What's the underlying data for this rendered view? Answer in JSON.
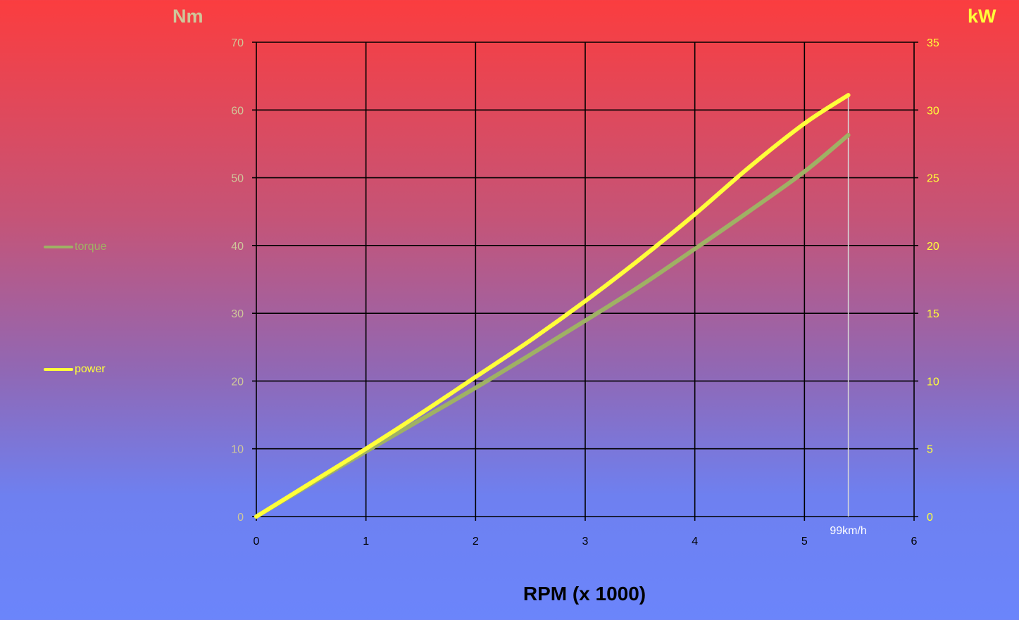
{
  "chart_data": {
    "type": "line",
    "xlabel": "RPM (x 1000)",
    "ylabel_left": "Nm",
    "ylabel_right": "kW",
    "xlim": [
      0,
      6
    ],
    "ylim_left": [
      0,
      70
    ],
    "ylim_right": [
      0,
      35
    ],
    "xticks": [
      "0",
      "1",
      "2",
      "3",
      "4",
      "5",
      "6"
    ],
    "yticks_left": [
      "0",
      "10",
      "20",
      "30",
      "40",
      "50",
      "60",
      "70"
    ],
    "yticks_right": [
      "0",
      "5",
      "10",
      "15",
      "20",
      "25",
      "30",
      "35"
    ],
    "grid": true,
    "legend_position": "left",
    "series": [
      {
        "name": "torque",
        "axis": "left",
        "color": "#9fb164",
        "x": [
          0,
          0.5,
          1,
          1.5,
          2,
          2.5,
          3,
          3.5,
          4,
          4.5,
          5,
          5.4
        ],
        "y": [
          0,
          4.8,
          9.6,
          14.3,
          19.0,
          23.9,
          28.9,
          34.0,
          39.5,
          45.1,
          50.9,
          56.3
        ]
      },
      {
        "name": "power",
        "axis": "right",
        "color": "#ffff3a",
        "x": [
          0,
          0.5,
          1,
          1.5,
          2,
          2.5,
          3,
          3.5,
          4,
          4.5,
          5,
          5.4
        ],
        "y": [
          0,
          2.5,
          5.0,
          7.6,
          10.3,
          13.0,
          15.9,
          19.0,
          22.3,
          25.8,
          29.0,
          31.1
        ]
      }
    ],
    "annotations": [
      {
        "x": 5.4,
        "label": "99km/h"
      }
    ]
  },
  "colors": {
    "left_axis_text": "#cfc79a",
    "right_axis_text": "#ffff3a",
    "grid": "#000000",
    "annotation_line": "#d8d8d8"
  }
}
